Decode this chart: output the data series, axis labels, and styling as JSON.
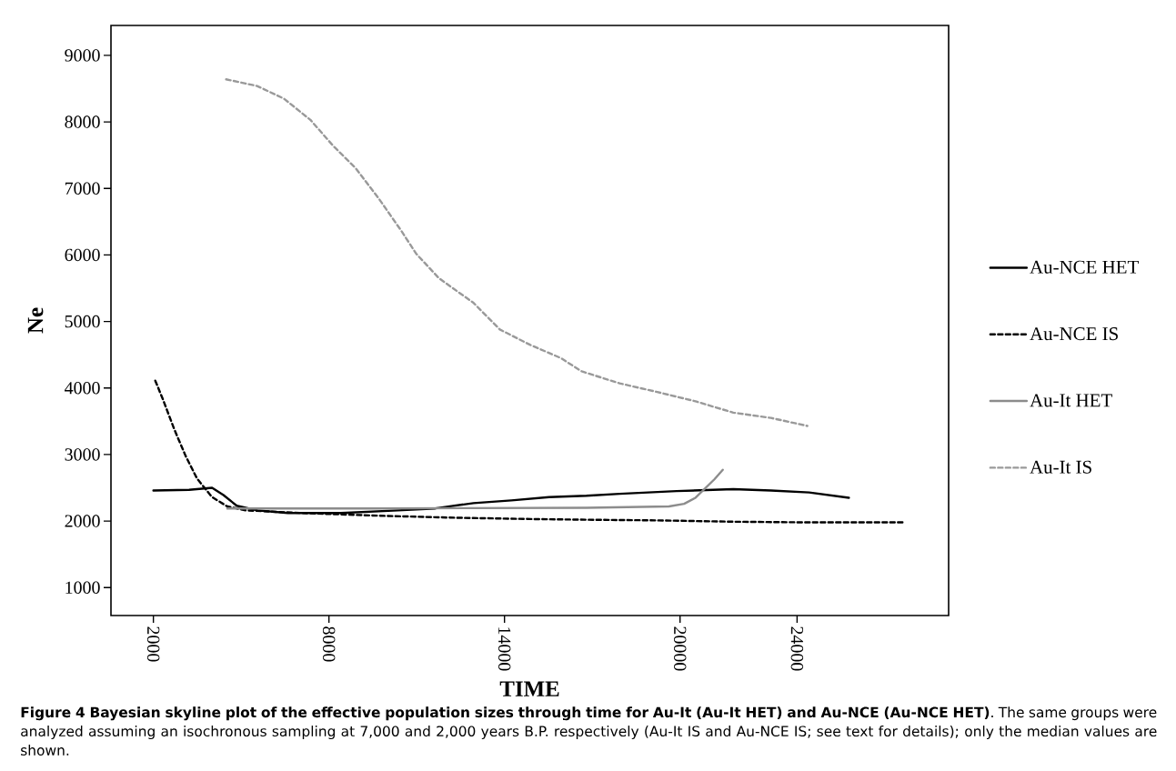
{
  "chart_data": {
    "type": "line",
    "xlabel": "TIME",
    "ylabel": "Ne",
    "xlim": [
      550,
      29180
    ],
    "ylim": [
      580,
      9450
    ],
    "xticks": [
      2000,
      8000,
      14000,
      20000,
      24000
    ],
    "yticks": [
      1000,
      2000,
      3000,
      4000,
      5000,
      6000,
      7000,
      8000,
      9000
    ],
    "legend": "right",
    "grid": false,
    "marker": "none",
    "series": [
      {
        "name": "Au-NCE HET",
        "color": "#000000",
        "line_style": "solid",
        "x": [
          2000,
          3220,
          4006,
          4395,
          4848,
          5560,
          6597,
          8410,
          10351,
          11640,
          12940,
          14236,
          15527,
          16800,
          17940,
          19880,
          21820,
          23110,
          24410,
          25770
        ],
        "values": [
          2460,
          2470,
          2500,
          2390,
          2230,
          2160,
          2120,
          2120,
          2160,
          2190,
          2270,
          2310,
          2360,
          2380,
          2410,
          2450,
          2480,
          2460,
          2430,
          2350
        ]
      },
      {
        "name": "Au-NCE IS",
        "color": "#000000",
        "line_style": "dashed",
        "x": [
          2064,
          2325,
          2713,
          3100,
          3490,
          4006,
          4525,
          5170,
          7110,
          9705,
          12294,
          14890,
          16800,
          19220,
          21820,
          24410,
          27710
        ],
        "values": [
          4110,
          3830,
          3380,
          2980,
          2640,
          2360,
          2220,
          2160,
          2120,
          2080,
          2050,
          2030,
          2020,
          2010,
          1990,
          1980,
          1980
        ]
      },
      {
        "name": "Au-It HET",
        "color": "#8c8c8c",
        "line_style": "solid",
        "x": [
          4525,
          9705,
          16800,
          19620,
          20140,
          20530,
          21180,
          21460
        ],
        "values": [
          2190,
          2190,
          2200,
          2220,
          2260,
          2350,
          2630,
          2770
        ]
      },
      {
        "name": "Au-It IS",
        "color": "#999999",
        "line_style": "dashed",
        "x": [
          4487,
          5545,
          6460,
          7368,
          8145,
          8922,
          9700,
          10477,
          10980,
          11760,
          12940,
          13840,
          14870,
          15926,
          16640,
          17935,
          19220,
          20530,
          21820,
          23110,
          24350
        ],
        "values": [
          8640,
          8540,
          8350,
          8030,
          7640,
          7300,
          6850,
          6360,
          6020,
          5650,
          5280,
          4880,
          4650,
          4450,
          4250,
          4070,
          3940,
          3800,
          3630,
          3550,
          3430
        ]
      }
    ],
    "annotations": [
      "**Figure 4 Bayesian skyline plot of the effective population sizes through time for Au-It (Au-It HET) and Au-NCE (Au-NCE HET)**. The same groups were analyzed assuming an isochronous sampling at 7,000 and 2,000 years B.P. respectively (Au-It IS and Au-NCE IS; see text for details); only the median values are shown."
    ]
  }
}
